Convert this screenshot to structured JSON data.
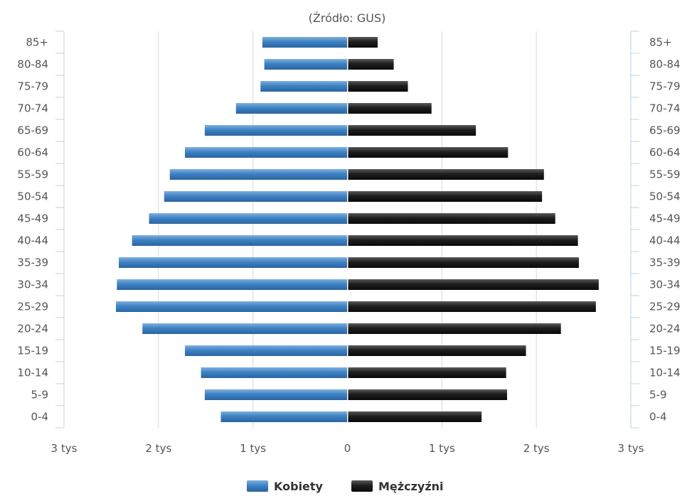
{
  "chart_data": {
    "type": "bar",
    "orientation": "horizontal",
    "subtitle": "(Źródło: GUS)",
    "categories": [
      "85+",
      "80-84",
      "75-79",
      "70-74",
      "65-69",
      "60-64",
      "55-59",
      "50-54",
      "45-49",
      "40-44",
      "35-39",
      "30-34",
      "25-29",
      "20-24",
      "15-19",
      "10-14",
      "5-9",
      "0-4"
    ],
    "series": [
      {
        "name": "Kobiety",
        "color": "#3a7fc1",
        "values": [
          900,
          880,
          920,
          1180,
          1510,
          1720,
          1880,
          1940,
          2100,
          2280,
          2420,
          2440,
          2450,
          2170,
          1720,
          1550,
          1510,
          1340
        ]
      },
      {
        "name": "Mężczyźni",
        "color": "#1c1c1c",
        "values": [
          320,
          490,
          640,
          890,
          1360,
          1700,
          2080,
          2060,
          2200,
          2440,
          2450,
          2660,
          2630,
          2260,
          1890,
          1680,
          1690,
          1420
        ]
      }
    ],
    "xlim": [
      -3000,
      3000
    ],
    "x_ticks": [
      {
        "value": -3000,
        "label": "3 tys"
      },
      {
        "value": -2000,
        "label": "2 tys"
      },
      {
        "value": -1000,
        "label": "1 tys"
      },
      {
        "value": 0,
        "label": "0"
      },
      {
        "value": 1000,
        "label": "1 tys"
      },
      {
        "value": 2000,
        "label": "2 tys"
      },
      {
        "value": 3000,
        "label": "3 tys"
      }
    ],
    "grid": true,
    "legend_position": "bottom"
  }
}
